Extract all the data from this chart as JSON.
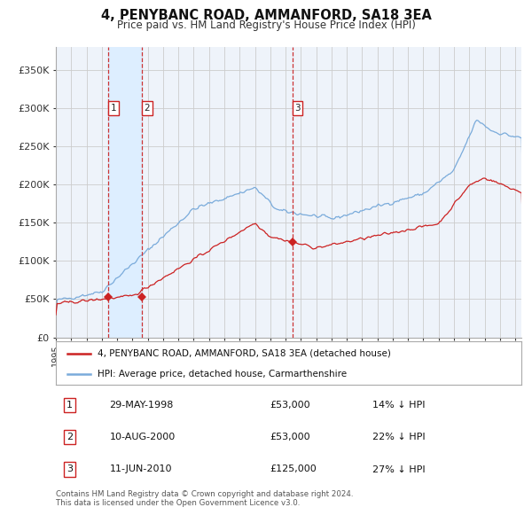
{
  "title": "4, PENYBANC ROAD, AMMANFORD, SA18 3EA",
  "subtitle": "Price paid vs. HM Land Registry's House Price Index (HPI)",
  "legend_line1": "4, PENYBANC ROAD, AMMANFORD, SA18 3EA (detached house)",
  "legend_line2": "HPI: Average price, detached house, Carmarthenshire",
  "footer1": "Contains HM Land Registry data © Crown copyright and database right 2024.",
  "footer2": "This data is licensed under the Open Government Licence v3.0.",
  "sale_markers": [
    {
      "label": "1",
      "date_num": 1998.41,
      "price": 53000,
      "hpi_pct": 14,
      "date_str": "29-MAY-1998"
    },
    {
      "label": "2",
      "date_num": 2000.61,
      "price": 53000,
      "hpi_pct": 22,
      "date_str": "10-AUG-2000"
    },
    {
      "label": "3",
      "date_num": 2010.44,
      "price": 125000,
      "hpi_pct": 27,
      "date_str": "11-JUN-2010"
    }
  ],
  "hpi_color": "#7aabdb",
  "property_color": "#cc2222",
  "dashed_line_color": "#cc3333",
  "highlight_fill": "#ddeeff",
  "grid_color": "#cccccc",
  "bg_color": "#eef3fa",
  "ylim": [
    0,
    380000
  ],
  "yticks": [
    0,
    50000,
    100000,
    150000,
    200000,
    250000,
    300000,
    350000
  ],
  "xlim_start": 1995.0,
  "xlim_end": 2025.4
}
